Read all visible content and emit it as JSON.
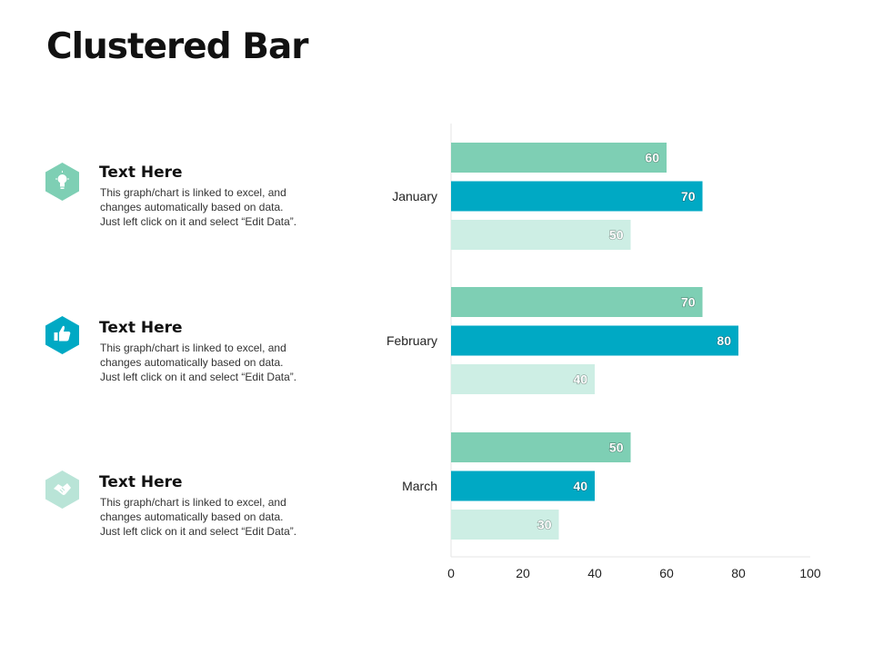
{
  "page": {
    "title": "Clustered Bar"
  },
  "blocks": [
    {
      "title": "Text Here",
      "lines": [
        "This graph/chart is linked to excel, and",
        "changes automatically based on data.",
        "Just left click on it and select “Edit Data”."
      ],
      "icon": "lightbulb-icon",
      "color": "#7ecfb4"
    },
    {
      "title": "Text Here",
      "lines": [
        "This graph/chart is linked to excel, and",
        "changes automatically based on data.",
        "Just left click on it and select “Edit Data”."
      ],
      "icon": "thumbs-up-icon",
      "color": "#00a9c4"
    },
    {
      "title": "Text Here",
      "lines": [
        "This graph/chart is linked to excel, and",
        "changes automatically based on data.",
        "Just left click on it and select “Edit Data”."
      ],
      "icon": "handshake-icon",
      "color": "#b9e4d7"
    }
  ],
  "chart_data": {
    "type": "bar",
    "orientation": "horizontal",
    "categories": [
      "January",
      "February",
      "March"
    ],
    "series": [
      {
        "values": [
          60,
          70,
          50
        ],
        "color": "#7ecfb4"
      },
      {
        "values": [
          70,
          80,
          40
        ],
        "color": "#00a9c4"
      },
      {
        "values": [
          50,
          40,
          30
        ],
        "color": "#cdeee4"
      }
    ],
    "xlim": [
      0,
      100
    ],
    "xticks": [
      "0",
      "20",
      "40",
      "60",
      "80",
      "100"
    ],
    "data_labels": true,
    "grid": false,
    "legend": "none"
  }
}
